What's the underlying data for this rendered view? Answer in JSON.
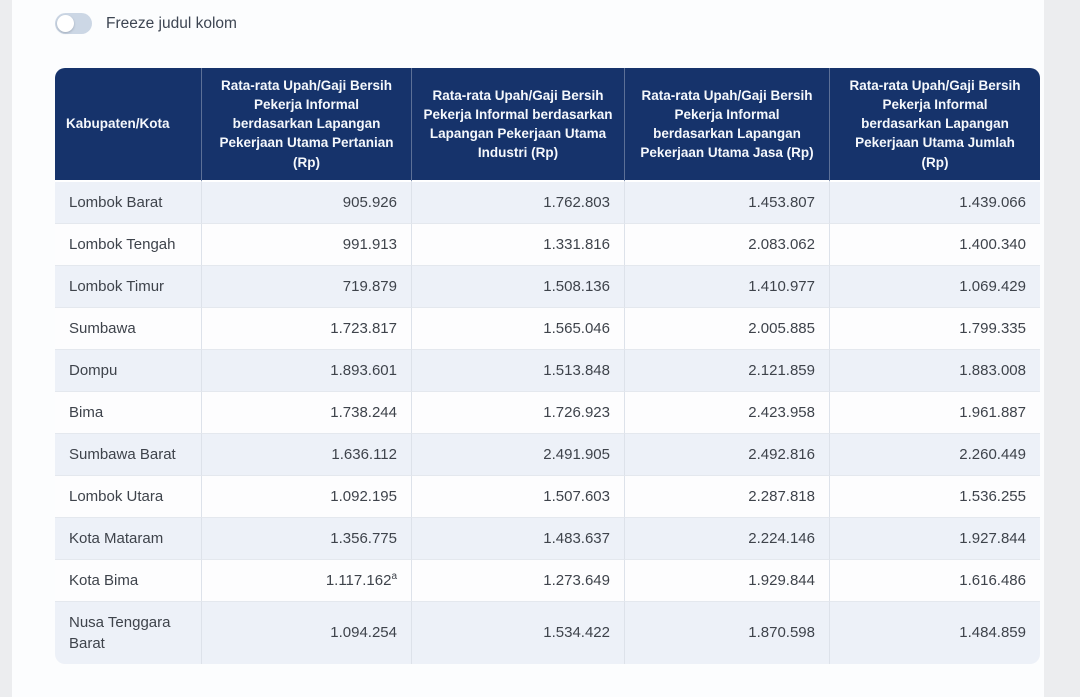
{
  "toggle": {
    "label": "Freeze judul kolom",
    "state": "off"
  },
  "table": {
    "columns": [
      "Kabupaten/Kota",
      "Rata-rata Upah/Gaji Bersih Pekerja Informal berdasarkan Lapangan Pekerjaan Utama Pertanian (Rp)",
      "Rata-rata Upah/Gaji Bersih Pekerja Informal berdasarkan Lapangan Pekerjaan Utama Industri (Rp)",
      "Rata-rata Upah/Gaji Bersih Pekerja Informal berdasarkan Lapangan Pekerjaan Utama Jasa (Rp)",
      "Rata-rata Upah/Gaji Bersih Pekerja Informal berdasarkan Lapangan Pekerjaan Utama Jumlah (Rp)"
    ],
    "rows": [
      {
        "region": "Lombok Barat",
        "values": [
          "905.926",
          "1.762.803",
          "1.453.807",
          "1.439.066"
        ]
      },
      {
        "region": "Lombok Tengah",
        "values": [
          "991.913",
          "1.331.816",
          "2.083.062",
          "1.400.340"
        ]
      },
      {
        "region": "Lombok Timur",
        "values": [
          "719.879",
          "1.508.136",
          "1.410.977",
          "1.069.429"
        ]
      },
      {
        "region": "Sumbawa",
        "values": [
          "1.723.817",
          "1.565.046",
          "2.005.885",
          "1.799.335"
        ]
      },
      {
        "region": "Dompu",
        "values": [
          "1.893.601",
          "1.513.848",
          "2.121.859",
          "1.883.008"
        ]
      },
      {
        "region": "Bima",
        "values": [
          "1.738.244",
          "1.726.923",
          "2.423.958",
          "1.961.887"
        ]
      },
      {
        "region": "Sumbawa Barat",
        "values": [
          "1.636.112",
          "2.491.905",
          "2.492.816",
          "2.260.449"
        ]
      },
      {
        "region": "Lombok Utara",
        "values": [
          "1.092.195",
          "1.507.603",
          "2.287.818",
          "1.536.255"
        ]
      },
      {
        "region": "Kota Mataram",
        "values": [
          "1.356.775",
          "1.483.637",
          "2.224.146",
          "1.927.844"
        ]
      },
      {
        "region": "Kota Bima",
        "values": [
          "1.117.162",
          "1.273.649",
          "1.929.844",
          "1.616.486"
        ],
        "sup": {
          "0": "a"
        }
      },
      {
        "region": "Nusa Tenggara Barat",
        "values": [
          "1.094.254",
          "1.534.422",
          "1.870.598",
          "1.484.859"
        ]
      }
    ]
  },
  "colors": {
    "header_bg": "#16336b",
    "header_text": "#f5f8fc",
    "row_stripe": "#edf1f8",
    "row_white": "#fdfdfe",
    "page_bg": "#ecedef",
    "card_bg": "#fcfdfe",
    "toggle_track": "#ccd7e5",
    "border": "#dde2ea",
    "text": "#3e434b"
  }
}
